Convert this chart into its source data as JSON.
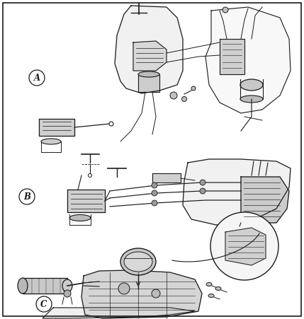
{
  "background_color": "#ffffff",
  "border_color": "#1a1a1a",
  "fig_width": 4.29,
  "fig_height": 4.51,
  "dpi": 100,
  "line_color": "#1a1a1a",
  "label_A": [
    0.095,
    0.72
  ],
  "label_B": [
    0.075,
    0.47
  ],
  "label_C": [
    0.12,
    0.175
  ],
  "label_fontsize": 9,
  "circle_r": 0.024
}
